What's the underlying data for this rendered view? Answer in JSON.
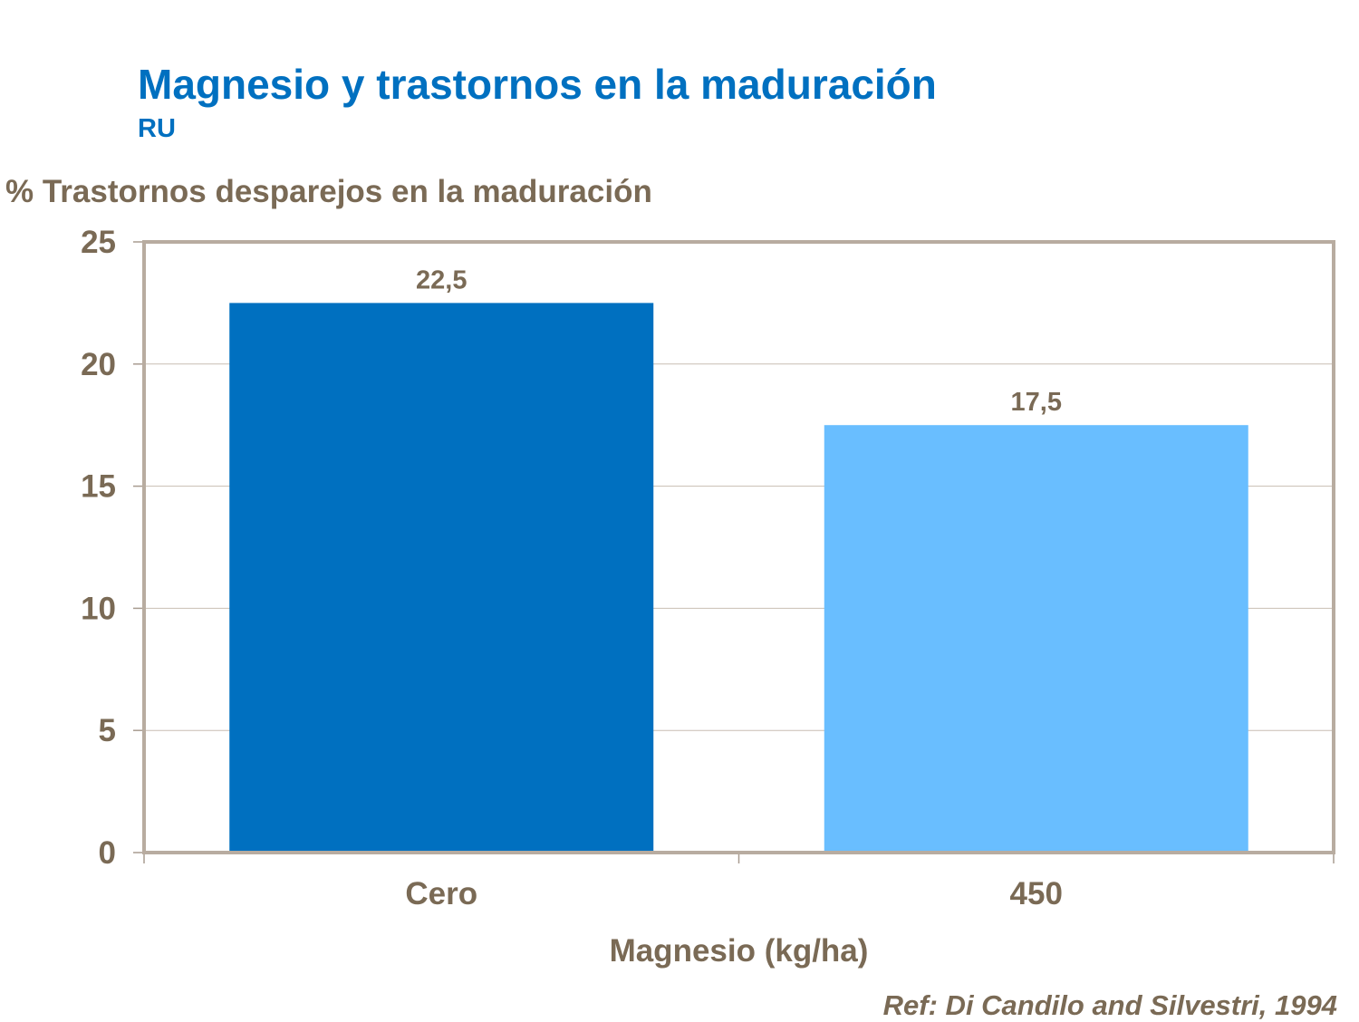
{
  "title": "Magnesio y trastornos en la maduración",
  "subtitle": "RU",
  "reference": "Ref: Di Candilo and Silvestri, 1994",
  "chart_data": {
    "type": "bar",
    "title": "Magnesio y trastornos en la maduración",
    "subtitle": "RU",
    "ylabel": "% Trastornos desparejos en la maduración",
    "xlabel": "Magnesio (kg/ha)",
    "categories": [
      "Cero",
      "450"
    ],
    "values": [
      22.5,
      17.5
    ],
    "data_labels": [
      "22,5",
      "17,5"
    ],
    "bar_colors": [
      "#0070C0",
      "#69BEFF"
    ],
    "ylim": [
      0,
      25
    ],
    "yticks": [
      0,
      5,
      10,
      15,
      20,
      25
    ],
    "grid": true,
    "legend": "none"
  }
}
